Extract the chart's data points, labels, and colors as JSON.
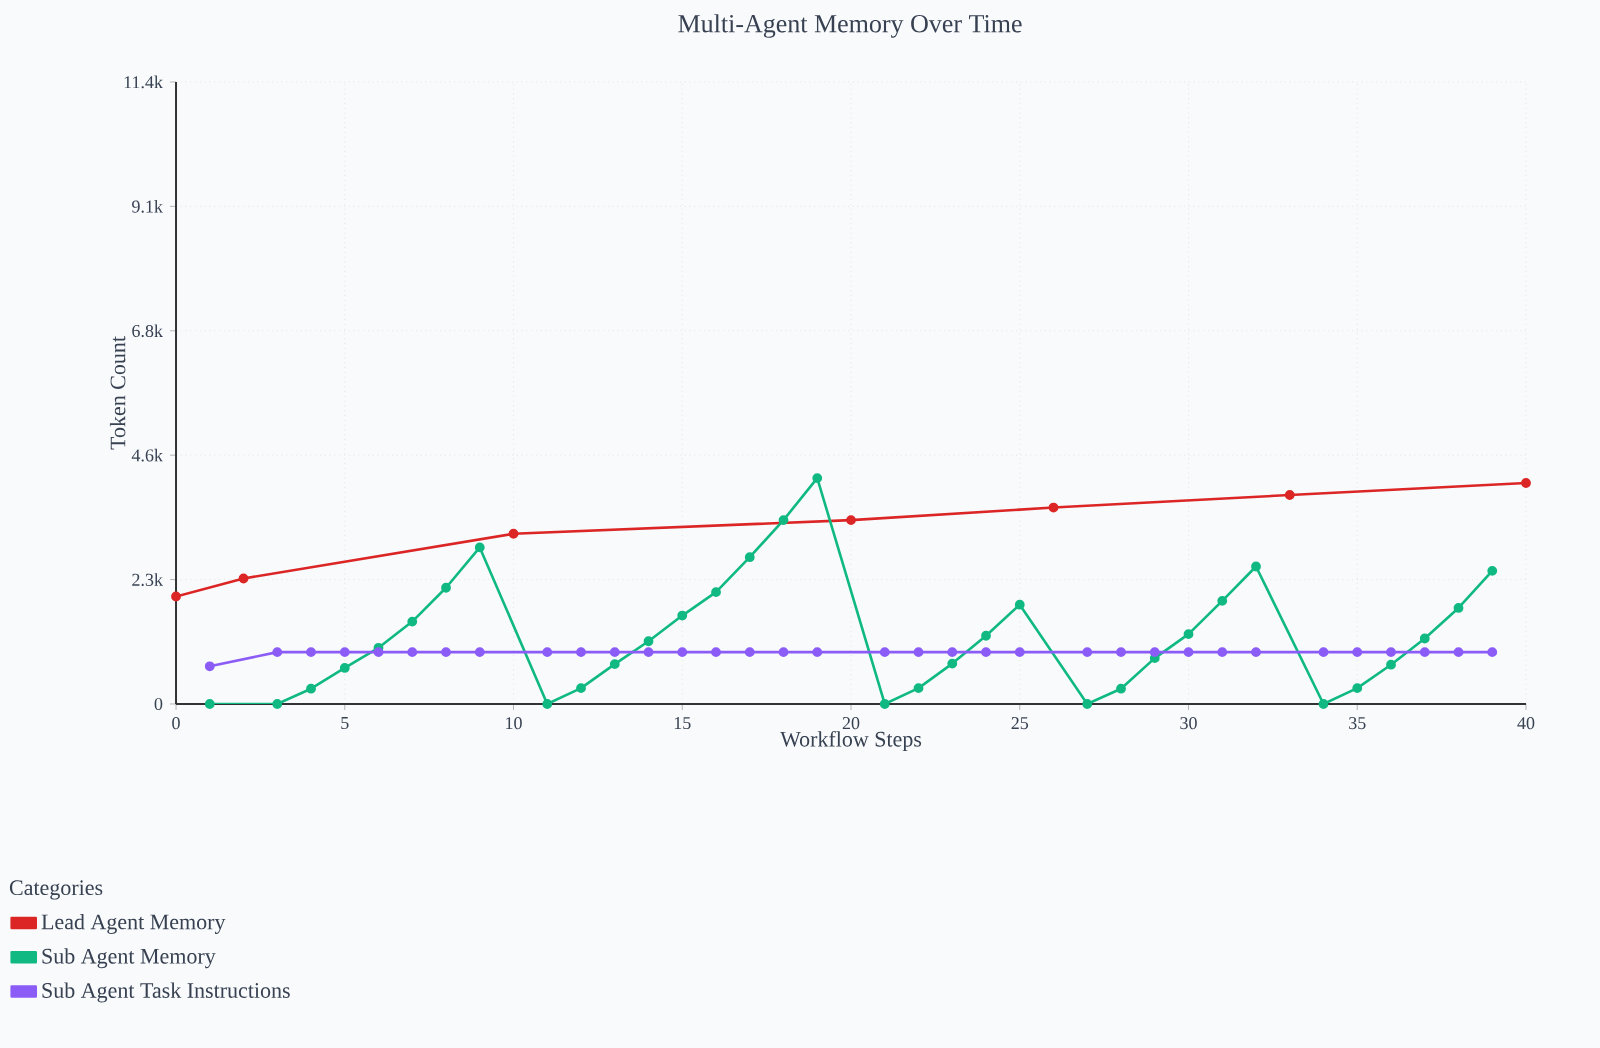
{
  "chart_data": {
    "type": "line",
    "title": "Multi-Agent Memory Over Time",
    "xlabel": "Workflow Steps",
    "ylabel": "Token Count",
    "legend_title": "Categories",
    "xlim": [
      0,
      40
    ],
    "xticks": [
      0,
      5,
      10,
      15,
      20,
      25,
      30,
      35,
      40
    ],
    "ylim": [
      0,
      11400
    ],
    "yticks": [
      0,
      {
        "value": 2280,
        "label": "2.3k"
      },
      {
        "value": 4560,
        "label": "4.6k"
      },
      {
        "value": 6840,
        "label": "6.8k"
      },
      {
        "value": 9120,
        "label": "9.1k"
      },
      {
        "value": 11400,
        "label": "11.4k"
      }
    ],
    "grid": true,
    "legend": "bottom left",
    "marker": "circle",
    "line_style": "solid",
    "series": [
      {
        "name": "Lead Agent Memory",
        "color": "#dc2626",
        "x": [
          0,
          2,
          10,
          20,
          26,
          33,
          40
        ],
        "values": [
          1970,
          2300,
          3120,
          3370,
          3600,
          3830,
          4050
        ]
      },
      {
        "name": "Sub Agent Memory",
        "color": "#10b981",
        "x": [
          1,
          3,
          4,
          5,
          6,
          7,
          8,
          9,
          11,
          12,
          13,
          14,
          15,
          16,
          17,
          18,
          19,
          21,
          22,
          23,
          24,
          25,
          27,
          28,
          29,
          30,
          31,
          32,
          34,
          35,
          36,
          37,
          38,
          39
        ],
        "values": [
          0,
          0,
          280,
          660,
          1030,
          1510,
          2130,
          2870,
          0,
          290,
          730,
          1150,
          1620,
          2050,
          2690,
          3370,
          4140,
          0,
          290,
          740,
          1250,
          1820,
          0,
          280,
          840,
          1280,
          1890,
          2520,
          0,
          290,
          720,
          1200,
          1760,
          2440
        ]
      },
      {
        "name": "Sub Agent Task Instructions",
        "color": "#8b5cf6",
        "x": [
          1,
          3,
          4,
          5,
          6,
          7,
          8,
          9,
          11,
          12,
          13,
          14,
          15,
          16,
          17,
          18,
          19,
          21,
          22,
          23,
          24,
          25,
          27,
          28,
          29,
          30,
          31,
          32,
          34,
          35,
          36,
          37,
          38,
          39
        ],
        "values": [
          690,
          950,
          950,
          950,
          950,
          950,
          950,
          950,
          950,
          950,
          950,
          950,
          950,
          950,
          950,
          950,
          950,
          950,
          950,
          950,
          950,
          950,
          950,
          950,
          950,
          950,
          950,
          950,
          950,
          950,
          950,
          950,
          950,
          950
        ]
      }
    ]
  }
}
